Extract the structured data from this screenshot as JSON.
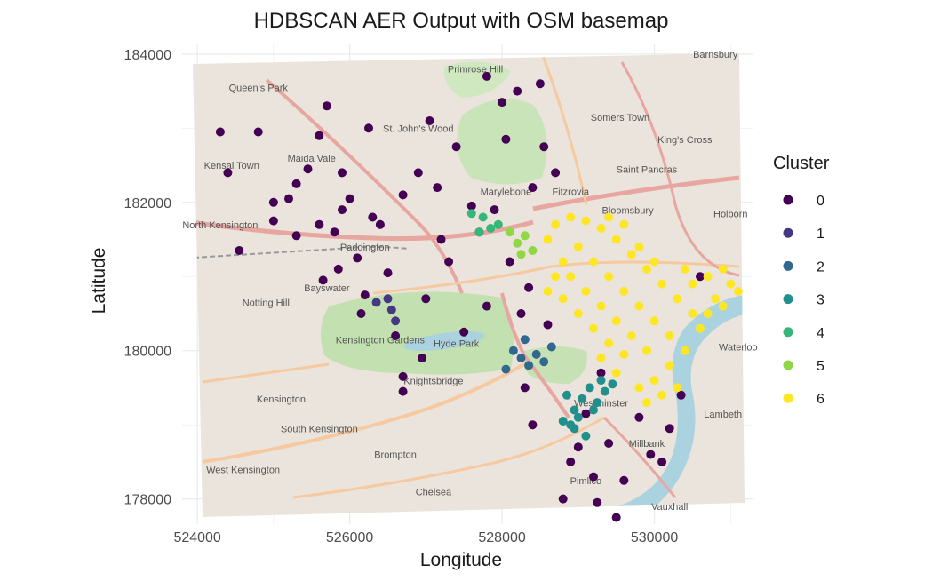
{
  "chart_data": {
    "type": "scatter",
    "title": "HDBSCAN AER Output with OSM basemap",
    "xlabel": "Longitude",
    "ylabel": "Latitude",
    "xlim": [
      523800,
      531300
    ],
    "ylim": [
      177660,
      184130
    ],
    "x_ticks": [
      524000,
      526000,
      528000,
      530000
    ],
    "y_ticks": [
      178000,
      180000,
      182000,
      184000
    ],
    "grid": true,
    "legend_title": "Cluster",
    "legend_position": "right",
    "basemap": "OpenStreetMap",
    "colors": {
      "0": "#440154",
      "1": "#443a83",
      "2": "#31688e",
      "3": "#21908d",
      "4": "#35b779",
      "5": "#8fd744",
      "6": "#fde725"
    },
    "series": [
      {
        "name": "0",
        "points": [
          [
            524300,
            182950
          ],
          [
            524400,
            182400
          ],
          [
            524800,
            182950
          ],
          [
            525000,
            182000
          ],
          [
            525000,
            181750
          ],
          [
            525200,
            182050
          ],
          [
            525300,
            181550
          ],
          [
            525450,
            182450
          ],
          [
            525600,
            181700
          ],
          [
            525800,
            181600
          ],
          [
            525850,
            181100
          ],
          [
            525700,
            183300
          ],
          [
            525600,
            182900
          ],
          [
            525900,
            182400
          ],
          [
            525900,
            181900
          ],
          [
            526000,
            182050
          ],
          [
            526100,
            181250
          ],
          [
            526150,
            180500
          ],
          [
            526200,
            180750
          ],
          [
            526300,
            181800
          ],
          [
            526500,
            181050
          ],
          [
            526600,
            180200
          ],
          [
            526700,
            182100
          ],
          [
            526700,
            179650
          ],
          [
            526700,
            179450
          ],
          [
            526900,
            182400
          ],
          [
            527000,
            180700
          ],
          [
            527050,
            183100
          ],
          [
            527200,
            181500
          ],
          [
            527300,
            181200
          ],
          [
            527400,
            182750
          ],
          [
            527500,
            180250
          ],
          [
            527600,
            181950
          ],
          [
            527700,
            181600
          ],
          [
            527800,
            180600
          ],
          [
            527900,
            181900
          ],
          [
            528000,
            183350
          ],
          [
            528050,
            182850
          ],
          [
            528100,
            181200
          ],
          [
            528200,
            183500
          ],
          [
            528250,
            180500
          ],
          [
            528300,
            179500
          ],
          [
            528400,
            179000
          ],
          [
            528500,
            183600
          ],
          [
            528550,
            182750
          ],
          [
            528600,
            180350
          ],
          [
            528700,
            182400
          ],
          [
            528900,
            178500
          ],
          [
            529000,
            178700
          ],
          [
            529100,
            179150
          ],
          [
            529200,
            178300
          ],
          [
            529250,
            177950
          ],
          [
            529400,
            178750
          ],
          [
            529600,
            178250
          ],
          [
            529800,
            179100
          ],
          [
            529950,
            178600
          ],
          [
            530100,
            178500
          ],
          [
            530200,
            178950
          ],
          [
            530600,
            181000
          ],
          [
            525300,
            182250
          ],
          [
            526400,
            181700
          ],
          [
            526950,
            179900
          ],
          [
            527800,
            183700
          ],
          [
            528400,
            182200
          ],
          [
            529500,
            177750
          ],
          [
            530350,
            179400
          ],
          [
            528350,
            180850
          ],
          [
            528800,
            178000
          ],
          [
            527150,
            182200
          ],
          [
            525650,
            180950
          ],
          [
            524550,
            181350
          ],
          [
            526250,
            183000
          ],
          [
            529300,
            179700
          ]
        ]
      },
      {
        "name": "1",
        "points": [
          [
            526500,
            180700
          ],
          [
            526550,
            180550
          ],
          [
            526600,
            180400
          ],
          [
            526350,
            180650
          ]
        ]
      },
      {
        "name": "2",
        "points": [
          [
            528150,
            180000
          ],
          [
            528250,
            179900
          ],
          [
            528350,
            179800
          ],
          [
            528450,
            179950
          ],
          [
            528550,
            179850
          ],
          [
            528650,
            180050
          ],
          [
            528300,
            180150
          ],
          [
            528050,
            179750
          ]
        ]
      },
      {
        "name": "3",
        "points": [
          [
            528850,
            179400
          ],
          [
            528950,
            179200
          ],
          [
            529050,
            179350
          ],
          [
            529150,
            179500
          ],
          [
            529250,
            179300
          ],
          [
            529300,
            179600
          ],
          [
            529350,
            179450
          ],
          [
            528800,
            179050
          ],
          [
            528900,
            179000
          ],
          [
            529000,
            179100
          ],
          [
            529100,
            178850
          ],
          [
            529200,
            179200
          ],
          [
            528950,
            178950
          ],
          [
            529450,
            179550
          ]
        ]
      },
      {
        "name": "4",
        "points": [
          [
            527600,
            181850
          ],
          [
            527750,
            181800
          ],
          [
            527850,
            181650
          ],
          [
            527950,
            181700
          ],
          [
            527700,
            181600
          ]
        ]
      },
      {
        "name": "5",
        "points": [
          [
            528100,
            181600
          ],
          [
            528200,
            181450
          ],
          [
            528300,
            181550
          ],
          [
            528400,
            181350
          ],
          [
            528250,
            181300
          ]
        ]
      },
      {
        "name": "6",
        "points": [
          [
            528900,
            181800
          ],
          [
            529100,
            181750
          ],
          [
            529300,
            181650
          ],
          [
            529500,
            181500
          ],
          [
            529700,
            181300
          ],
          [
            529900,
            181100
          ],
          [
            530100,
            180900
          ],
          [
            530300,
            180700
          ],
          [
            530500,
            180500
          ],
          [
            530700,
            181000
          ],
          [
            530900,
            181100
          ],
          [
            531000,
            180900
          ],
          [
            531100,
            180800
          ],
          [
            530800,
            180700
          ],
          [
            530600,
            180300
          ],
          [
            530400,
            180000
          ],
          [
            530200,
            179800
          ],
          [
            530000,
            179600
          ],
          [
            529800,
            179500
          ],
          [
            529700,
            180200
          ],
          [
            529500,
            180400
          ],
          [
            529300,
            180600
          ],
          [
            529100,
            180800
          ],
          [
            528900,
            181000
          ],
          [
            528800,
            181200
          ],
          [
            528700,
            181000
          ],
          [
            528600,
            180800
          ],
          [
            529000,
            181400
          ],
          [
            529200,
            181200
          ],
          [
            529400,
            181000
          ],
          [
            529600,
            180800
          ],
          [
            529800,
            180600
          ],
          [
            530000,
            180400
          ],
          [
            530200,
            180200
          ],
          [
            529900,
            180000
          ],
          [
            529600,
            179950
          ],
          [
            529400,
            180100
          ],
          [
            529200,
            180300
          ],
          [
            529000,
            180500
          ],
          [
            528800,
            180700
          ],
          [
            530500,
            180900
          ],
          [
            530700,
            180500
          ],
          [
            530900,
            180600
          ],
          [
            530100,
            179400
          ],
          [
            529900,
            179300
          ],
          [
            530300,
            179500
          ],
          [
            529600,
            181700
          ],
          [
            529400,
            181800
          ],
          [
            529800,
            181400
          ],
          [
            530000,
            181200
          ],
          [
            528700,
            181700
          ],
          [
            528600,
            181500
          ],
          [
            530400,
            181100
          ],
          [
            529300,
            179900
          ],
          [
            529500,
            179700
          ]
        ]
      }
    ]
  },
  "basemap_labels": [
    {
      "text": "Queen's Park",
      "lon": 524800,
      "lat": 183500
    },
    {
      "text": "St. John's Wood",
      "lon": 526900,
      "lat": 182950
    },
    {
      "text": "Primrose Hill",
      "lon": 527650,
      "lat": 183750
    },
    {
      "text": "Barnsbury",
      "lon": 530800,
      "lat": 183950
    },
    {
      "text": "Somers Town",
      "lon": 529550,
      "lat": 183100
    },
    {
      "text": "King's Cross",
      "lon": 530400,
      "lat": 182800
    },
    {
      "text": "Kensal Town",
      "lon": 524450,
      "lat": 182450
    },
    {
      "text": "Maida Vale",
      "lon": 525500,
      "lat": 182550
    },
    {
      "text": "Marylebone",
      "lon": 528050,
      "lat": 182100
    },
    {
      "text": "Fitzrovia",
      "lon": 528900,
      "lat": 182100
    },
    {
      "text": "Saint Pancras",
      "lon": 529900,
      "lat": 182400
    },
    {
      "text": "Bloomsbury",
      "lon": 529650,
      "lat": 181850
    },
    {
      "text": "Holborn",
      "lon": 531000,
      "lat": 181800
    },
    {
      "text": "North Kensington",
      "lon": 524300,
      "lat": 181650
    },
    {
      "text": "Paddington",
      "lon": 526200,
      "lat": 181350
    },
    {
      "text": "Bayswater",
      "lon": 525700,
      "lat": 180800
    },
    {
      "text": "Notting Hill",
      "lon": 524900,
      "lat": 180600
    },
    {
      "text": "Hyde Park",
      "lon": 527400,
      "lat": 180050
    },
    {
      "text": "Kensington Gardens",
      "lon": 526400,
      "lat": 180100
    },
    {
      "text": "Knightsbridge",
      "lon": 527100,
      "lat": 179550
    },
    {
      "text": "Kensington",
      "lon": 525100,
      "lat": 179300
    },
    {
      "text": "South Kensington",
      "lon": 525600,
      "lat": 178900
    },
    {
      "text": "Brompton",
      "lon": 526600,
      "lat": 178550
    },
    {
      "text": "West Kensington",
      "lon": 524600,
      "lat": 178350
    },
    {
      "text": "Chelsea",
      "lon": 527100,
      "lat": 178050
    },
    {
      "text": "Millbank",
      "lon": 529900,
      "lat": 178700
    },
    {
      "text": "Lambeth",
      "lon": 530900,
      "lat": 179100
    },
    {
      "text": "Waterloo",
      "lon": 531100,
      "lat": 180000
    },
    {
      "text": "Pimlico",
      "lon": 529100,
      "lat": 178200
    },
    {
      "text": "Vauxhall",
      "lon": 530200,
      "lat": 177850
    },
    {
      "text": "Westminster",
      "lon": 529300,
      "lat": 179250
    }
  ]
}
